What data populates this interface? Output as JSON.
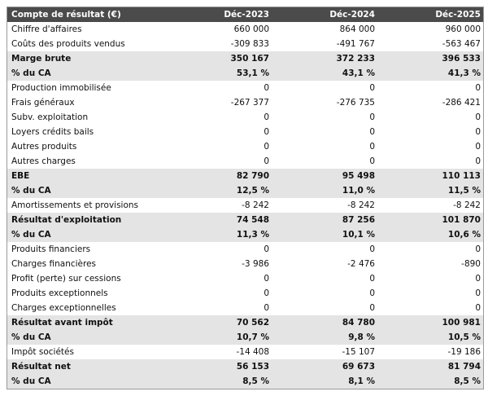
{
  "table": {
    "header": [
      "Compte de résultat (€)",
      "Déc-2023",
      "Déc-2024",
      "Déc-2025"
    ],
    "rows": [
      [
        "Chiffre d'affaires",
        "660 000",
        "864 000",
        "960 000"
      ],
      [
        "Coûts des produits vendus",
        "-309 833",
        "-491 767",
        "-563 467"
      ],
      [
        "Marge brute",
        "350 167",
        "372 233",
        "396 533"
      ],
      [
        "% du CA",
        "53,1 %",
        "43,1 %",
        "41,3 %"
      ],
      [
        "Production immobilisée",
        "0",
        "0",
        "0"
      ],
      [
        "Frais généraux",
        "-267 377",
        "-276 735",
        "-286 421"
      ],
      [
        "Subv. exploitation",
        "0",
        "0",
        "0"
      ],
      [
        "Loyers crédits bails",
        "0",
        "0",
        "0"
      ],
      [
        "Autres produits",
        "0",
        "0",
        "0"
      ],
      [
        "Autres charges",
        "0",
        "0",
        "0"
      ],
      [
        "EBE",
        "82 790",
        "95 498",
        "110 113"
      ],
      [
        "% du CA",
        "12,5 %",
        "11,0 %",
        "11,5 %"
      ],
      [
        "Amortissements et provisions",
        "-8 242",
        "-8 242",
        "-8 242"
      ],
      [
        "Résultat d'exploitation",
        "74 548",
        "87 256",
        "101 870"
      ],
      [
        "% du CA",
        "11,3 %",
        "10,1 %",
        "10,6 %"
      ],
      [
        "Produits financiers",
        "0",
        "0",
        "0"
      ],
      [
        "Charges financières",
        "-3 986",
        "-2 476",
        "-890"
      ],
      [
        "Profit (perte) sur cessions",
        "0",
        "0",
        "0"
      ],
      [
        "Produits exceptionnels",
        "0",
        "0",
        "0"
      ],
      [
        "Charges exceptionnelles",
        "0",
        "0",
        "0"
      ],
      [
        "Résultat avant impôt",
        "70 562",
        "84 780",
        "100 981"
      ],
      [
        "% du CA",
        "10,7 %",
        "9,8 %",
        "10,5 %"
      ],
      [
        "Impôt sociétés",
        "-14 408",
        "-15 107",
        "-19 186"
      ],
      [
        "Résultat net",
        "56 153",
        "69 673",
        "81 794"
      ],
      [
        "% du CA",
        "8,5 %",
        "8,1 %",
        "8,5 %"
      ]
    ]
  }
}
